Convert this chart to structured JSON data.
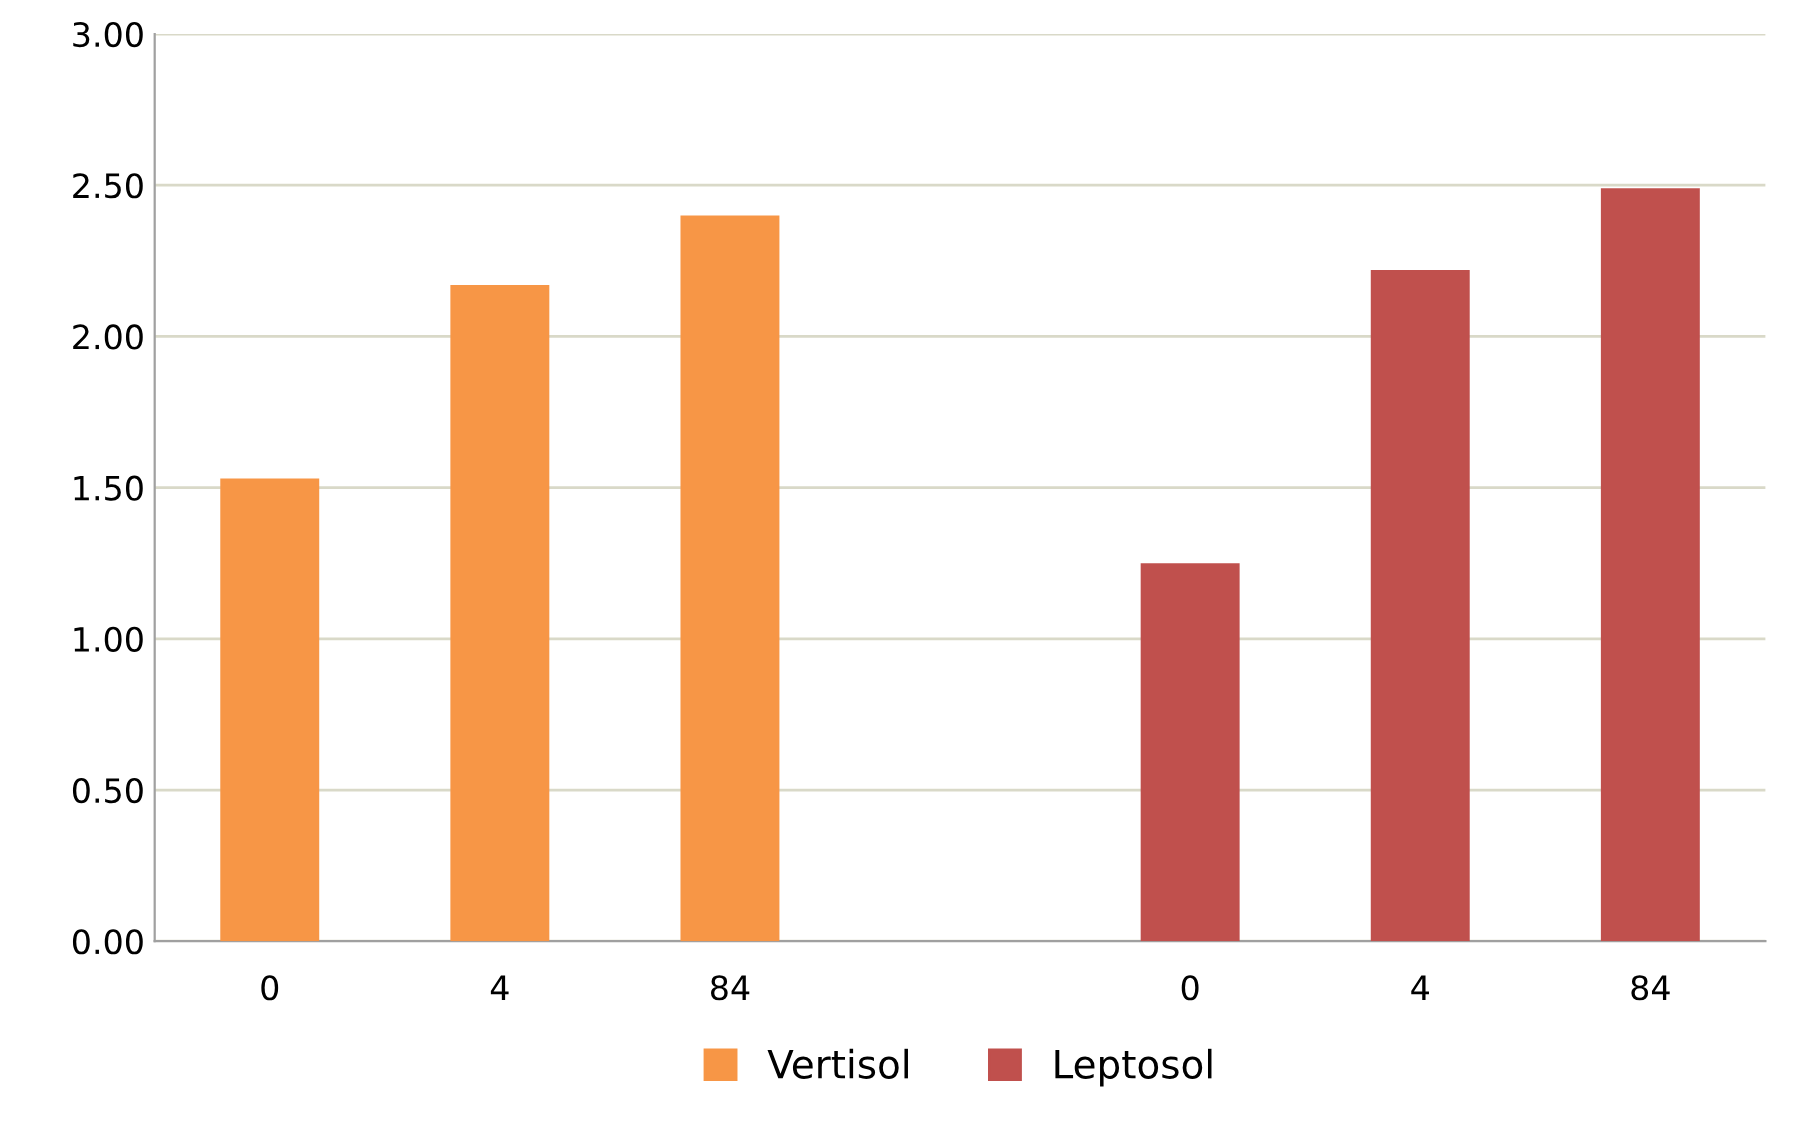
{
  "chart_data": {
    "type": "bar",
    "categories": [
      "0",
      "4",
      "84",
      null,
      "0",
      "4",
      "84"
    ],
    "series": [
      {
        "name": "Vertisol",
        "color": "#f79646",
        "values": [
          1.53,
          2.17,
          2.4,
          null,
          null,
          null,
          null
        ]
      },
      {
        "name": "Leptosol",
        "color": "#c0504d",
        "values": [
          null,
          null,
          null,
          null,
          1.25,
          2.22,
          2.49
        ]
      }
    ],
    "ylim": [
      0,
      3
    ],
    "yticks": [
      {
        "value": 0,
        "label": "0.00"
      },
      {
        "value": 0.5,
        "label": "0.50"
      },
      {
        "value": 1,
        "label": "1.00"
      },
      {
        "value": 1.5,
        "label": "1.50"
      },
      {
        "value": 2,
        "label": "2.00"
      },
      {
        "value": 2.5,
        "label": "2.50"
      },
      {
        "value": 3,
        "label": "3.00"
      }
    ],
    "grid": "y",
    "legend": "bottom"
  }
}
